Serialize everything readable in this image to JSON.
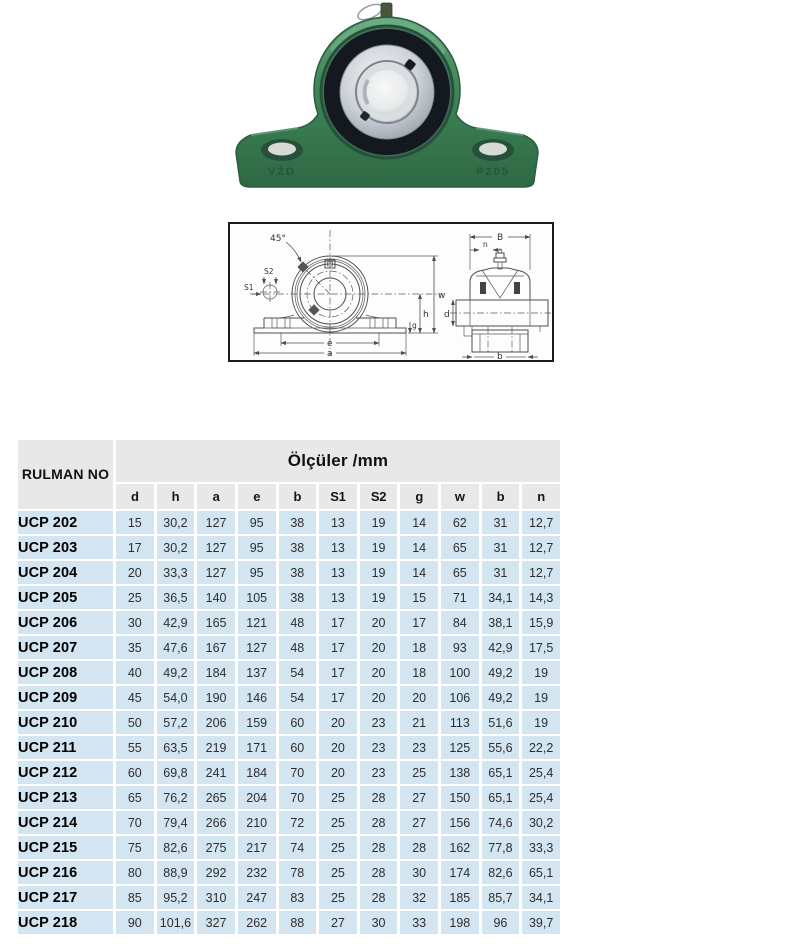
{
  "product_photo": {
    "alt": "UCP pillow block bearing, green cast housing with silver insert",
    "housing_color": "#3f8457",
    "marking_left": "VŽD",
    "marking_right": "P205"
  },
  "diagram": {
    "alt": "Technical drawing: front view and side section of UCP pillow block",
    "labels": {
      "angle": "45°",
      "s2": "S2",
      "s1": "S1",
      "w": "w",
      "h": "h",
      "g": "g",
      "e": "e",
      "a": "a",
      "B": "B",
      "n": "n",
      "d": "d",
      "b": "b"
    }
  },
  "table": {
    "row_header": "RULMAN NO",
    "group_header": "Ölçüler /mm",
    "columns": [
      "d",
      "h",
      "a",
      "e",
      "b",
      "S1",
      "S2",
      "g",
      "w",
      "b",
      "n"
    ],
    "rows": [
      {
        "name": "UCP 202",
        "values": [
          "15",
          "30,2",
          "127",
          "95",
          "38",
          "13",
          "19",
          "14",
          "62",
          "31",
          "12,7"
        ]
      },
      {
        "name": "UCP 203",
        "values": [
          "17",
          "30,2",
          "127",
          "95",
          "38",
          "13",
          "19",
          "14",
          "65",
          "31",
          "12,7"
        ]
      },
      {
        "name": "UCP 204",
        "values": [
          "20",
          "33,3",
          "127",
          "95",
          "38",
          "13",
          "19",
          "14",
          "65",
          "31",
          "12,7"
        ]
      },
      {
        "name": "UCP 205",
        "values": [
          "25",
          "36,5",
          "140",
          "105",
          "38",
          "13",
          "19",
          "15",
          "71",
          "34,1",
          "14,3"
        ]
      },
      {
        "name": "UCP 206",
        "values": [
          "30",
          "42,9",
          "165",
          "121",
          "48",
          "17",
          "20",
          "17",
          "84",
          "38,1",
          "15,9"
        ]
      },
      {
        "name": "UCP 207",
        "values": [
          "35",
          "47,6",
          "167",
          "127",
          "48",
          "17",
          "20",
          "18",
          "93",
          "42,9",
          "17,5"
        ]
      },
      {
        "name": "UCP 208",
        "values": [
          "40",
          "49,2",
          "184",
          "137",
          "54",
          "17",
          "20",
          "18",
          "100",
          "49,2",
          "19"
        ]
      },
      {
        "name": "UCP 209",
        "values": [
          "45",
          "54,0",
          "190",
          "146",
          "54",
          "17",
          "20",
          "20",
          "106",
          "49,2",
          "19"
        ]
      },
      {
        "name": "UCP 210",
        "values": [
          "50",
          "57,2",
          "206",
          "159",
          "60",
          "20",
          "23",
          "21",
          "113",
          "51,6",
          "19"
        ]
      },
      {
        "name": "UCP 211",
        "values": [
          "55",
          "63,5",
          "219",
          "171",
          "60",
          "20",
          "23",
          "23",
          "125",
          "55,6",
          "22,2"
        ]
      },
      {
        "name": "UCP 212",
        "values": [
          "60",
          "69,8",
          "241",
          "184",
          "70",
          "20",
          "23",
          "25",
          "138",
          "65,1",
          "25,4"
        ]
      },
      {
        "name": "UCP 213",
        "values": [
          "65",
          "76,2",
          "265",
          "204",
          "70",
          "25",
          "28",
          "27",
          "150",
          "65,1",
          "25,4"
        ]
      },
      {
        "name": "UCP 214",
        "values": [
          "70",
          "79,4",
          "266",
          "210",
          "72",
          "25",
          "28",
          "27",
          "156",
          "74,6",
          "30,2"
        ]
      },
      {
        "name": "UCP 215",
        "values": [
          "75",
          "82,6",
          "275",
          "217",
          "74",
          "25",
          "28",
          "28",
          "162",
          "77,8",
          "33,3"
        ]
      },
      {
        "name": "UCP 216",
        "values": [
          "80",
          "88,9",
          "292",
          "232",
          "78",
          "25",
          "28",
          "30",
          "174",
          "82,6",
          "65,1"
        ]
      },
      {
        "name": "UCP 217",
        "values": [
          "85",
          "95,2",
          "310",
          "247",
          "83",
          "25",
          "28",
          "32",
          "185",
          "85,7",
          "34,1"
        ]
      },
      {
        "name": "UCP 218",
        "values": [
          "90",
          "101,6",
          "327",
          "262",
          "88",
          "27",
          "30",
          "33",
          "198",
          "96",
          "39,7"
        ]
      }
    ]
  },
  "colors": {
    "row_bg": "#d2e5f1",
    "header_bg": "#e8e8e8",
    "page_bg": "#ffffff"
  }
}
